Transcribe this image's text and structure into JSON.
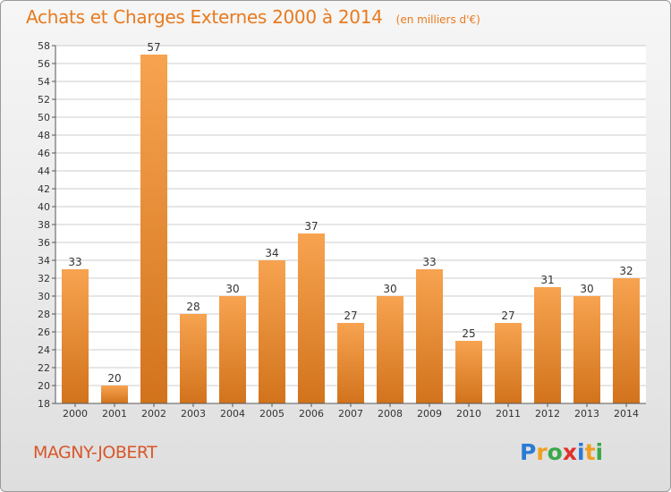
{
  "title": "Achats et Charges Externes 2000 à 2014",
  "unit_note": "(en milliers d'€)",
  "commune": "MAGNY-JOBERT",
  "logo": {
    "letters": [
      "P",
      "r",
      "o",
      "x",
      "i",
      "t",
      "i"
    ],
    "colors": [
      "#2a7bd4",
      "#f0a020",
      "#3aa84a",
      "#e0322d",
      "#2a7bd4",
      "#f0a020",
      "#3aa84a"
    ]
  },
  "colors": {
    "title": "#e87a1e",
    "bar_light": "#f7a350",
    "bar_dark": "#d2731c",
    "grid": "#cccccc"
  },
  "chart_data": {
    "type": "bar",
    "title": "Achats et Charges Externes 2000 à 2014",
    "categories": [
      "2000",
      "2001",
      "2002",
      "2003",
      "2004",
      "2005",
      "2006",
      "2007",
      "2008",
      "2009",
      "2010",
      "2011",
      "2012",
      "2013",
      "2014"
    ],
    "values": [
      33,
      20,
      57,
      28,
      30,
      34,
      37,
      27,
      30,
      33,
      25,
      27,
      31,
      30,
      32
    ],
    "ylim": [
      18,
      58
    ],
    "yticks": [
      18,
      20,
      22,
      24,
      26,
      28,
      30,
      32,
      34,
      36,
      38,
      40,
      42,
      44,
      46,
      48,
      50,
      52,
      54,
      56,
      58
    ],
    "grid": "horizontal",
    "legend": "none",
    "xlabel": "",
    "ylabel": ""
  }
}
